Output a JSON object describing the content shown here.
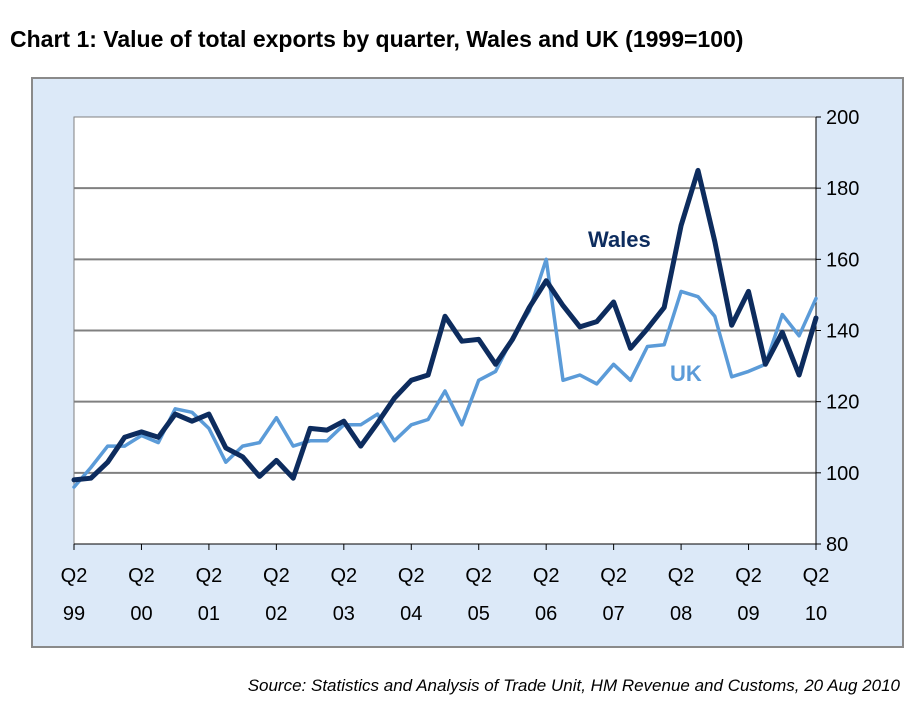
{
  "title": "Chart 1: Value of total exports by quarter, Wales and UK (1999=100)",
  "source": "Source: Statistics and Analysis of Trade Unit, HM Revenue and Customs, 20 Aug 2010",
  "colors": {
    "wales": "#0d2c5e",
    "uk": "#5b9bd8",
    "background": "#dce9f8",
    "plot": "#ffffff",
    "grid": "#808080"
  },
  "chart_data": {
    "type": "line",
    "title": "Chart 1: Value of total exports by quarter, Wales and UK (1999=100)",
    "xlabel": "",
    "ylabel": "",
    "ylim": [
      80,
      200
    ],
    "yticks": [
      80,
      100,
      120,
      140,
      160,
      180,
      200
    ],
    "y_axis_side": "right",
    "grid": "horizontal",
    "x_tick_labels": [
      {
        "quarter": "Q2",
        "year": "99"
      },
      {
        "quarter": "Q2",
        "year": "00"
      },
      {
        "quarter": "Q2",
        "year": "01"
      },
      {
        "quarter": "Q2",
        "year": "02"
      },
      {
        "quarter": "Q2",
        "year": "03"
      },
      {
        "quarter": "Q2",
        "year": "04"
      },
      {
        "quarter": "Q2",
        "year": "05"
      },
      {
        "quarter": "Q2",
        "year": "06"
      },
      {
        "quarter": "Q2",
        "year": "07"
      },
      {
        "quarter": "Q2",
        "year": "08"
      },
      {
        "quarter": "Q2",
        "year": "09"
      },
      {
        "quarter": "Q2",
        "year": "10"
      }
    ],
    "x": [
      "Q2 99",
      "Q3 99",
      "Q4 99",
      "Q1 00",
      "Q2 00",
      "Q3 00",
      "Q4 00",
      "Q1 01",
      "Q2 01",
      "Q3 01",
      "Q4 01",
      "Q1 02",
      "Q2 02",
      "Q3 02",
      "Q4 02",
      "Q1 03",
      "Q2 03",
      "Q3 03",
      "Q4 03",
      "Q1 04",
      "Q2 04",
      "Q3 04",
      "Q4 04",
      "Q1 05",
      "Q2 05",
      "Q3 05",
      "Q4 05",
      "Q1 06",
      "Q2 06",
      "Q3 06",
      "Q4 06",
      "Q1 07",
      "Q2 07",
      "Q3 07",
      "Q4 07",
      "Q1 08",
      "Q2 08",
      "Q3 08",
      "Q4 08",
      "Q1 09",
      "Q2 09",
      "Q3 09",
      "Q4 09",
      "Q1 10",
      "Q2 10"
    ],
    "series": [
      {
        "name": "Wales",
        "values": [
          98,
          98.5,
          103,
          110,
          111.5,
          110,
          116.5,
          114.5,
          116.5,
          107,
          104.5,
          99,
          103.5,
          98.5,
          112.5,
          112,
          114.5,
          107.5,
          114,
          121,
          126,
          127.5,
          144,
          137,
          137.5,
          130.5,
          137.5,
          146.5,
          154,
          147,
          141,
          142.5,
          148,
          135,
          140.5,
          146.5,
          169.5,
          185,
          165,
          141.5,
          151,
          130.5,
          139.5,
          127.5,
          143.5
        ]
      },
      {
        "name": "UK",
        "values": [
          96,
          101.5,
          107.5,
          107.5,
          110.5,
          108.5,
          118,
          117,
          112.5,
          103,
          107.5,
          108.5,
          115.5,
          107.5,
          109,
          109,
          113.5,
          113.5,
          116.5,
          109,
          113.5,
          115,
          123,
          113.5,
          126,
          128.5,
          138,
          145.5,
          160,
          126,
          127.5,
          125,
          130.5,
          126,
          135.5,
          136,
          151,
          149.5,
          144,
          127,
          128.5,
          130.5,
          144.5,
          138.5,
          149
        ]
      }
    ],
    "series_labels": [
      {
        "name": "Wales",
        "text": "Wales"
      },
      {
        "name": "UK",
        "text": "UK"
      }
    ]
  }
}
